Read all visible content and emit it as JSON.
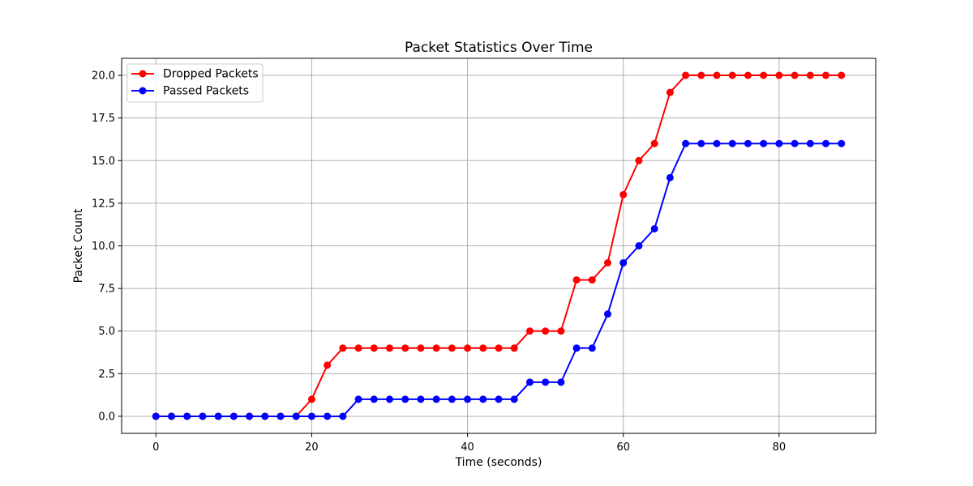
{
  "chart_data": {
    "type": "line",
    "title": "Packet Statistics Over Time",
    "xlabel": "Time (seconds)",
    "ylabel": "Packet Count",
    "xlim": [
      -4.4,
      92.4
    ],
    "ylim": [
      -1.0,
      21.0
    ],
    "xticks": [
      0,
      20,
      40,
      60,
      80
    ],
    "yticks": [
      0.0,
      2.5,
      5.0,
      7.5,
      10.0,
      12.5,
      15.0,
      17.5,
      20.0
    ],
    "grid": true,
    "legend_position": "upper-left",
    "x": [
      0,
      2,
      4,
      6,
      8,
      10,
      12,
      14,
      16,
      18,
      20,
      22,
      24,
      26,
      28,
      30,
      32,
      34,
      36,
      38,
      40,
      42,
      44,
      46,
      48,
      50,
      52,
      54,
      56,
      58,
      60,
      62,
      64,
      66,
      68,
      70,
      72,
      74,
      76,
      78,
      80,
      82,
      84,
      86,
      88
    ],
    "series": [
      {
        "name": "Dropped Packets",
        "color": "#ff0000",
        "values": [
          0,
          0,
          0,
          0,
          0,
          0,
          0,
          0,
          0,
          0,
          1,
          3,
          4,
          4,
          4,
          4,
          4,
          4,
          4,
          4,
          4,
          4,
          4,
          4,
          5,
          5,
          5,
          8,
          8,
          9,
          13,
          15,
          16,
          19,
          20,
          20,
          20,
          20,
          20,
          20,
          20,
          20,
          20,
          20,
          20
        ]
      },
      {
        "name": "Passed Packets",
        "color": "#0000ff",
        "values": [
          0,
          0,
          0,
          0,
          0,
          0,
          0,
          0,
          0,
          0,
          0,
          0,
          0,
          1,
          1,
          1,
          1,
          1,
          1,
          1,
          1,
          1,
          1,
          1,
          2,
          2,
          2,
          4,
          4,
          6,
          9,
          10,
          11,
          14,
          16,
          16,
          16,
          16,
          16,
          16,
          16,
          16,
          16,
          16,
          16
        ]
      }
    ]
  }
}
